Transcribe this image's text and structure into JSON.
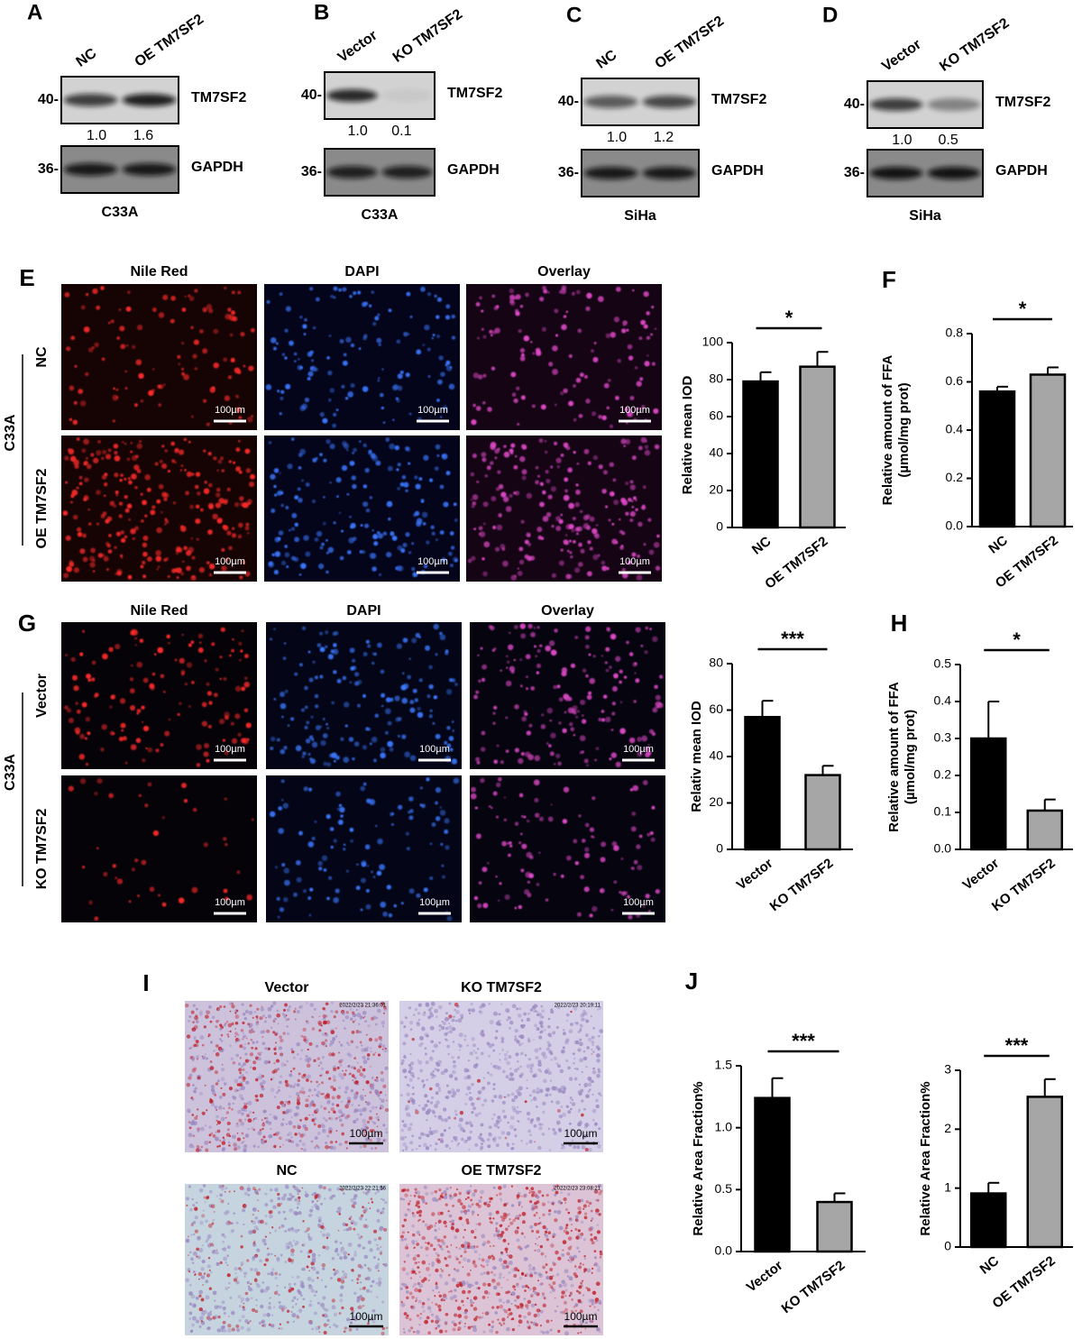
{
  "blots": [
    {
      "panel": "A",
      "lanes": [
        "NC",
        "OE TM7SF2"
      ],
      "rows": [
        {
          "marker": "40-",
          "label": "TM7SF2"
        },
        {
          "marker": "36-",
          "label": "GAPDH"
        }
      ],
      "quant": [
        "1.0",
        "1.6"
      ],
      "cell_line": "C33A"
    },
    {
      "panel": "B",
      "lanes": [
        "Vector",
        "KO TM7SF2"
      ],
      "rows": [
        {
          "marker": "40-",
          "label": "TM7SF2"
        },
        {
          "marker": "36-",
          "label": "GAPDH"
        }
      ],
      "quant": [
        "1.0",
        "0.1"
      ],
      "cell_line": "C33A"
    },
    {
      "panel": "C",
      "lanes": [
        "NC",
        "OE TM7SF2"
      ],
      "rows": [
        {
          "marker": "40-",
          "label": "TM7SF2"
        },
        {
          "marker": "36-",
          "label": "GAPDH"
        }
      ],
      "quant": [
        "1.0",
        "1.2"
      ],
      "cell_line": "SiHa"
    },
    {
      "panel": "D",
      "lanes": [
        "Vector",
        "KO TM7SF2"
      ],
      "rows": [
        {
          "marker": "40-",
          "label": "TM7SF2"
        },
        {
          "marker": "36-",
          "label": "GAPDH"
        }
      ],
      "quant": [
        "1.0",
        "0.5"
      ],
      "cell_line": "SiHa"
    }
  ],
  "fluorescence": [
    {
      "panel": "E",
      "columns": [
        "Nile Red",
        "DAPI",
        "Overlay"
      ],
      "rows": [
        "NC",
        "OE TM7SF2"
      ],
      "group": "C33A",
      "scale_bar": "100µm"
    },
    {
      "panel": "G",
      "columns": [
        "Nile Red",
        "DAPI",
        "Overlay"
      ],
      "rows": [
        "Vector",
        "KO TM7SF2"
      ],
      "group": "C33A",
      "scale_bar": "100µm"
    }
  ],
  "histology": {
    "panel": "I",
    "scale_bar": "100µm",
    "images": [
      {
        "title": "Vector",
        "timestamp": "2022/2/23 21:36:01"
      },
      {
        "title": "KO TM7SF2",
        "timestamp": "2022/2/23 20:19:11"
      },
      {
        "title": "NC",
        "timestamp": "2022/2/23 22:21:56"
      },
      {
        "title": "OE TM7SF2",
        "timestamp": "2022/2/23 23:08:21"
      }
    ]
  },
  "chart_data": [
    {
      "type": "bar",
      "ylabel": [
        "Relative mean IOD"
      ],
      "categories": [
        "NC",
        "OE TM7SF2"
      ],
      "values": [
        79,
        87
      ],
      "errors": [
        5,
        8
      ],
      "colors": [
        "#000000",
        "#a6a6a6"
      ],
      "ylim": [
        0,
        100
      ],
      "yticks": [
        0,
        20,
        40,
        60,
        80,
        100
      ],
      "significance": "*"
    },
    {
      "type": "bar",
      "panel": "F",
      "ylabel": [
        "Relative amount of FFA",
        "(µmol/mg prot)"
      ],
      "categories": [
        "NC",
        "OE TM7SF2"
      ],
      "values": [
        0.56,
        0.63
      ],
      "errors": [
        0.02,
        0.03
      ],
      "colors": [
        "#000000",
        "#a6a6a6"
      ],
      "ylim": [
        0,
        0.8
      ],
      "yticks": [
        {
          "value": 0,
          "label": "0.0"
        },
        0.2,
        0.4,
        0.6,
        0.8
      ],
      "significance": "*"
    },
    {
      "type": "bar",
      "ylabel": [
        "Relativ mean IOD"
      ],
      "categories": [
        "Vector",
        "KO TM7SF2"
      ],
      "values": [
        57,
        32
      ],
      "errors": [
        7,
        4
      ],
      "colors": [
        "#000000",
        "#a6a6a6"
      ],
      "ylim": [
        0,
        80
      ],
      "yticks": [
        0,
        20,
        40,
        60,
        80
      ],
      "significance": "***"
    },
    {
      "type": "bar",
      "panel": "H",
      "ylabel": [
        "Relative amount of FFA",
        "(µmol/mg prot)"
      ],
      "categories": [
        "Vector",
        "KO TM7SF2"
      ],
      "values": [
        0.3,
        0.105
      ],
      "errors": [
        0.1,
        0.03
      ],
      "colors": [
        "#000000",
        "#a6a6a6"
      ],
      "ylim": [
        0,
        0.5
      ],
      "yticks": [
        {
          "value": 0,
          "label": "0.0"
        },
        0.1,
        0.2,
        0.3,
        0.4,
        0.5
      ],
      "significance": "*"
    },
    {
      "type": "bar",
      "panel": "J",
      "ylabel": [
        "Relative  Area Fraction%"
      ],
      "categories": [
        "Vector",
        "KO TM7SF2"
      ],
      "values": [
        1.24,
        0.4
      ],
      "errors": [
        0.16,
        0.07
      ],
      "colors": [
        "#000000",
        "#a6a6a6"
      ],
      "ylim": [
        0,
        1.5
      ],
      "yticks": [
        {
          "value": 0,
          "label": "0.0"
        },
        0.5,
        {
          "value": 1,
          "label": "1.0"
        },
        1.5
      ],
      "significance": "***"
    },
    {
      "type": "bar",
      "ylabel": [
        "Relative  Area Fraction%"
      ],
      "categories": [
        "NC",
        "OE TM7SF2"
      ],
      "values": [
        0.91,
        2.55
      ],
      "errors": [
        0.18,
        0.3
      ],
      "colors": [
        "#000000",
        "#a6a6a6"
      ],
      "ylim": [
        0,
        3
      ],
      "yticks": [
        0,
        1,
        2,
        3
      ],
      "significance": "***"
    }
  ]
}
